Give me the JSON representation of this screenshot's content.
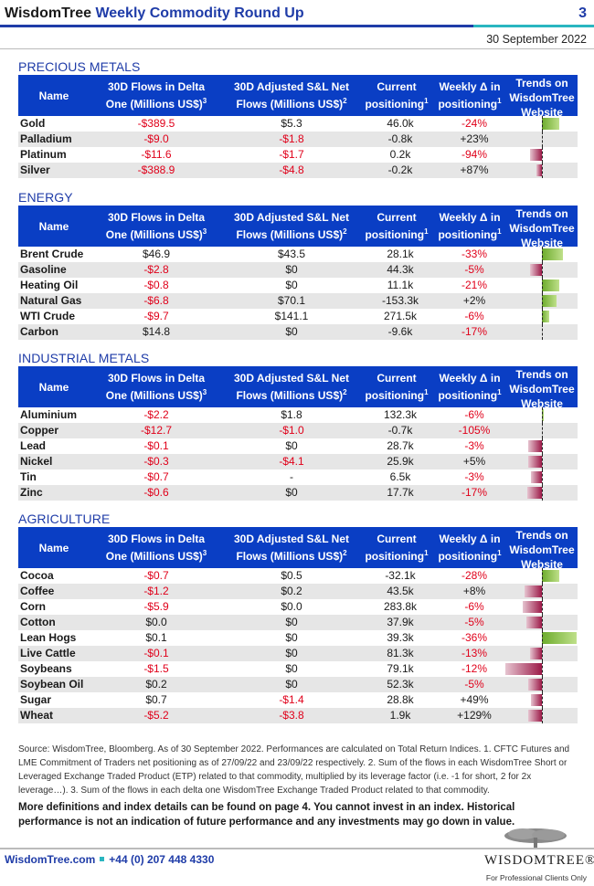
{
  "header": {
    "brand": "WisdomTree",
    "title_rest": " Weekly Commodity Round Up",
    "page_number": "3",
    "date": "30 September 2022"
  },
  "table_headers": {
    "name": "Name",
    "delta_flows_l1": "30D Flows in Delta",
    "delta_flows_l2": "One (Millions US$)",
    "delta_flows_sup": "3",
    "sl_flows_l1": "30D Adjusted S&L Net",
    "sl_flows_l2": "Flows (Millions US$)",
    "sl_flows_sup": "2",
    "positioning_l1": "Current",
    "positioning_l2": "positioning",
    "positioning_sup": "1",
    "weekly_l1": "Weekly Δ in",
    "weekly_l2": "positioning",
    "weekly_sup": "1",
    "trends_l1": "Trends on",
    "trends_l2": "WisdomTree",
    "trends_l3": "Website"
  },
  "sections": [
    {
      "title": "PRECIOUS METALS",
      "rows": [
        {
          "name": "Gold",
          "delta": "-$389.5",
          "sl": "$5.3",
          "pos": "46.0k",
          "wk": "-24%",
          "trend": 0.45
        },
        {
          "name": "Palladium",
          "delta": "-$9.0",
          "sl": "-$1.8",
          "pos": "-0.8k",
          "wk": "+23%",
          "trend": 0.0
        },
        {
          "name": "Platinum",
          "delta": "-$11.6",
          "sl": "-$1.7",
          "pos": "0.2k",
          "wk": "-94%",
          "trend": -0.3
        },
        {
          "name": "Silver",
          "delta": "-$388.9",
          "sl": "-$4.8",
          "pos": "-0.2k",
          "wk": "+87%",
          "trend": -0.15
        }
      ]
    },
    {
      "title": "ENERGY",
      "rows": [
        {
          "name": "Brent Crude",
          "delta": "$46.9",
          "sl": "$43.5",
          "pos": "28.1k",
          "wk": "-33%",
          "trend": 0.55
        },
        {
          "name": "Gasoline",
          "delta": "-$2.8",
          "sl": "$0",
          "pos": "44.3k",
          "wk": "-5%",
          "trend": -0.3
        },
        {
          "name": "Heating Oil",
          "delta": "-$0.8",
          "sl": "$0",
          "pos": "11.1k",
          "wk": "-21%",
          "trend": 0.45
        },
        {
          "name": "Natural Gas",
          "delta": "-$6.8",
          "sl": "$70.1",
          "pos": "-153.3k",
          "wk": "+2%",
          "trend": 0.38
        },
        {
          "name": "WTI Crude",
          "delta": "-$9.7",
          "sl": "$141.1",
          "pos": "271.5k",
          "wk": "-6%",
          "trend": 0.18
        },
        {
          "name": "Carbon",
          "delta": "$14.8",
          "sl": "$0",
          "pos": "-9.6k",
          "wk": "-17%",
          "trend": 0.0
        }
      ]
    },
    {
      "title": "INDUSTRIAL METALS",
      "rows": [
        {
          "name": "Aluminium",
          "delta": "-$2.2",
          "sl": "$1.8",
          "pos": "132.3k",
          "wk": "-6%",
          "trend": 0.05
        },
        {
          "name": "Copper",
          "delta": "-$12.7",
          "sl": "-$1.0",
          "pos": "-0.7k",
          "wk": "-105%",
          "trend": 0.0
        },
        {
          "name": "Lead",
          "delta": "-$0.1",
          "sl": "$0",
          "pos": "28.7k",
          "wk": "-3%",
          "trend": -0.35
        },
        {
          "name": "Nickel",
          "delta": "-$0.3",
          "sl": "-$4.1",
          "pos": "25.9k",
          "wk": "+5%",
          "trend": -0.35
        },
        {
          "name": "Tin",
          "delta": "-$0.7",
          "sl": "-",
          "pos": "6.5k",
          "wk": "-3%",
          "trend": -0.28
        },
        {
          "name": "Zinc",
          "delta": "-$0.6",
          "sl": "$0",
          "pos": "17.7k",
          "wk": "-17%",
          "trend": -0.38
        }
      ]
    },
    {
      "title": "AGRICULTURE",
      "rows": [
        {
          "name": "Cocoa",
          "delta": "-$0.7",
          "sl": "$0.5",
          "pos": "-32.1k",
          "wk": "-28%",
          "trend": 0.45
        },
        {
          "name": "Coffee",
          "delta": "-$1.2",
          "sl": "$0.2",
          "pos": "43.5k",
          "wk": "+8%",
          "trend": -0.45
        },
        {
          "name": "Corn",
          "delta": "-$5.9",
          "sl": "$0.0",
          "pos": "283.8k",
          "wk": "-6%",
          "trend": -0.5
        },
        {
          "name": "Cotton",
          "delta": "$0.0",
          "sl": "$0",
          "pos": "37.9k",
          "wk": "-5%",
          "trend": -0.4
        },
        {
          "name": "Lean Hogs",
          "delta": "$0.1",
          "sl": "$0",
          "pos": "39.3k",
          "wk": "-36%",
          "trend": 0.9
        },
        {
          "name": "Live Cattle",
          "delta": "-$0.1",
          "sl": "$0",
          "pos": "81.3k",
          "wk": "-13%",
          "trend": -0.3
        },
        {
          "name": "Soybeans",
          "delta": "-$1.5",
          "sl": "$0",
          "pos": "79.1k",
          "wk": "-12%",
          "trend": -0.95
        },
        {
          "name": "Soybean Oil",
          "delta": "$0.2",
          "sl": "$0",
          "pos": "52.3k",
          "wk": "-5%",
          "trend": -0.35
        },
        {
          "name": "Sugar",
          "delta": "$0.7",
          "sl": "-$1.4",
          "pos": "28.8k",
          "wk": "+49%",
          "trend": -0.28
        },
        {
          "name": "Wheat",
          "delta": "-$5.2",
          "sl": "-$3.8",
          "pos": "1.9k",
          "wk": "+129%",
          "trend": -0.35
        }
      ]
    }
  ],
  "footer": {
    "source": "Source: WisdomTree, Bloomberg. As of 30 September 2022. Performances are calculated on Total Return Indices. 1. CFTC Futures and LME Commitment of Traders net positioning as of 27/09/22 and 23/09/22 respectively. 2. Sum of the flows in each WisdomTree Short or Leveraged Exchange Traded Product (ETP) related to that commodity, multiplied by its leverage factor (i.e. -1 for short, 2 for 2x leverage…). 3. Sum of the flows in each delta one WisdomTree Exchange Traded Product related to that commodity.",
    "disclaimer": "More definitions and index details can be found on page 4. You cannot invest in an index. Historical performance is not an indication of future performance and any investments may go down in value.",
    "website": "WisdomTree.com",
    "phone": "+44 (0) 207 448 4330",
    "logo_text": "WISDOMTREE®",
    "professional": "For Professional Clients Only"
  },
  "colors": {
    "brand_blue": "#1f3ca8",
    "header_fill": "#0a3ec4",
    "accent_teal": "#2ab6c0",
    "negative_red": "#e0001a",
    "trend_up": "#6cab2c",
    "trend_down": "#9c1a48"
  }
}
